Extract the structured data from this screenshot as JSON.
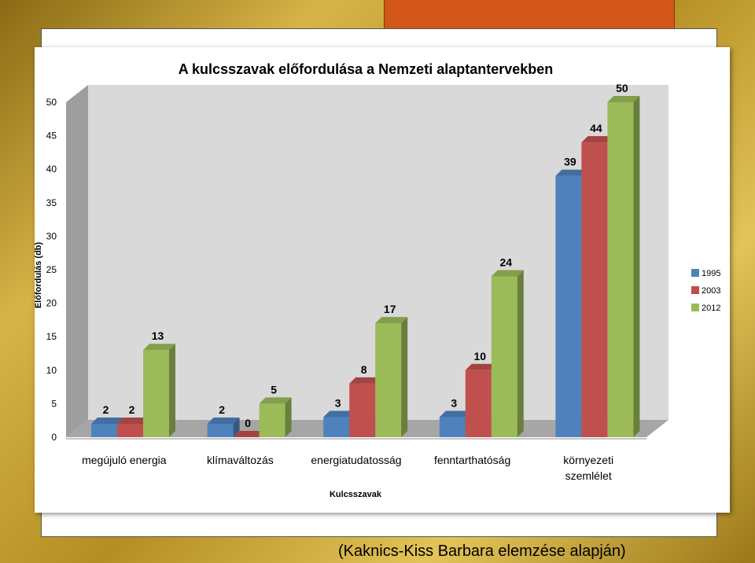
{
  "chart_data": {
    "type": "bar",
    "title": "A kulcsszavak előfordulása a Nemzeti alaptantervekben",
    "xlabel": "Kulcsszavak",
    "ylabel": "Előfordulás (db)",
    "categories": [
      "megújuló energia",
      "klímaváltozás",
      "energiatudatosság",
      "fenntarthatóság",
      "környezeti szemlélet"
    ],
    "category_lines": [
      [
        "megújuló energia"
      ],
      [
        "klímaváltozás"
      ],
      [
        "energiatudatosság"
      ],
      [
        "fenntarthatóság"
      ],
      [
        "környezeti",
        "szemlélet"
      ]
    ],
    "series": [
      {
        "name": "1995",
        "color": "#4f81bd",
        "values": [
          2,
          2,
          3,
          3,
          39
        ]
      },
      {
        "name": "2003",
        "color": "#c0504d",
        "values": [
          2,
          0,
          8,
          10,
          44
        ]
      },
      {
        "name": "2012",
        "color": "#9bbb59",
        "values": [
          13,
          5,
          17,
          24,
          50
        ]
      }
    ],
    "ylim": [
      0,
      50
    ],
    "yticks": [
      0,
      5,
      10,
      15,
      20,
      25,
      30,
      35,
      40,
      45,
      50
    ],
    "grid": false,
    "legend": "right",
    "style": "3d-clustered-column"
  },
  "caption": "(Kaknics-Kiss Barbara elemzése alapján)"
}
